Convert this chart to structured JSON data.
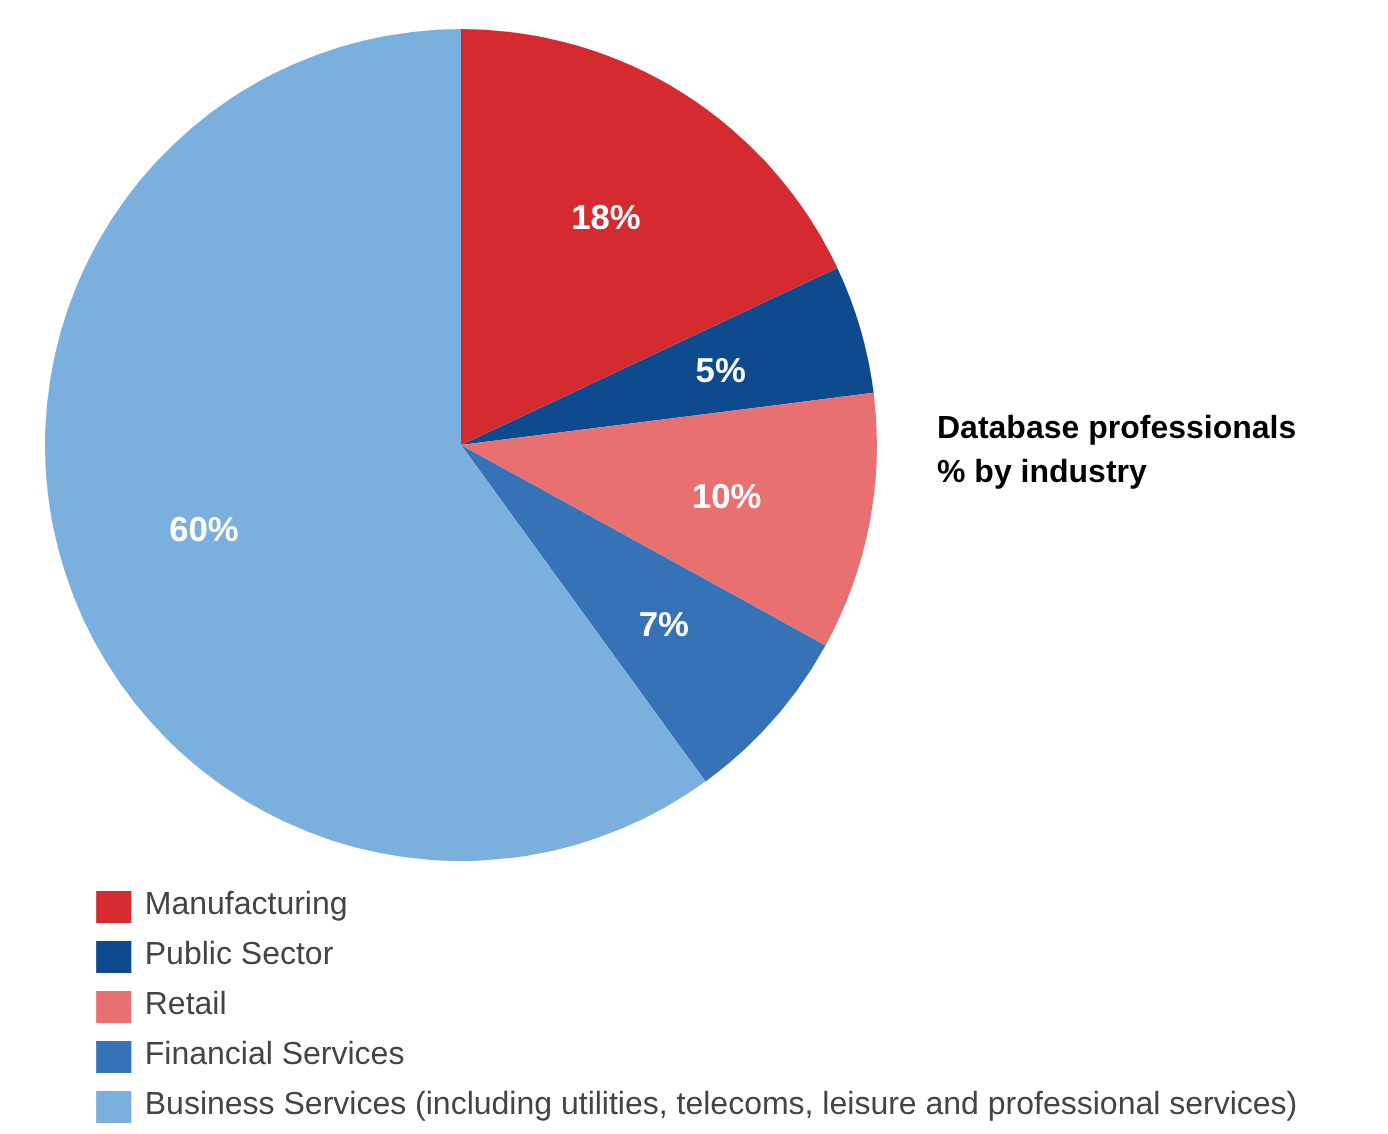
{
  "chart_data": {
    "type": "pie",
    "title": "Database professionals\n% by industry",
    "categories": [
      "Manufacturing",
      "Public Sector",
      "Retail",
      "Financial Services",
      "Business Services (including utilities, telecoms, leisure and professional services)"
    ],
    "values": [
      18,
      5,
      10,
      7,
      60
    ],
    "colors": [
      "#d42a30",
      "#0e4a8e",
      "#e87070",
      "#3572b6",
      "#7aafde"
    ],
    "value_labels": [
      "18%",
      "5%",
      "10%",
      "7%",
      "60%"
    ],
    "legend": "bottom"
  }
}
